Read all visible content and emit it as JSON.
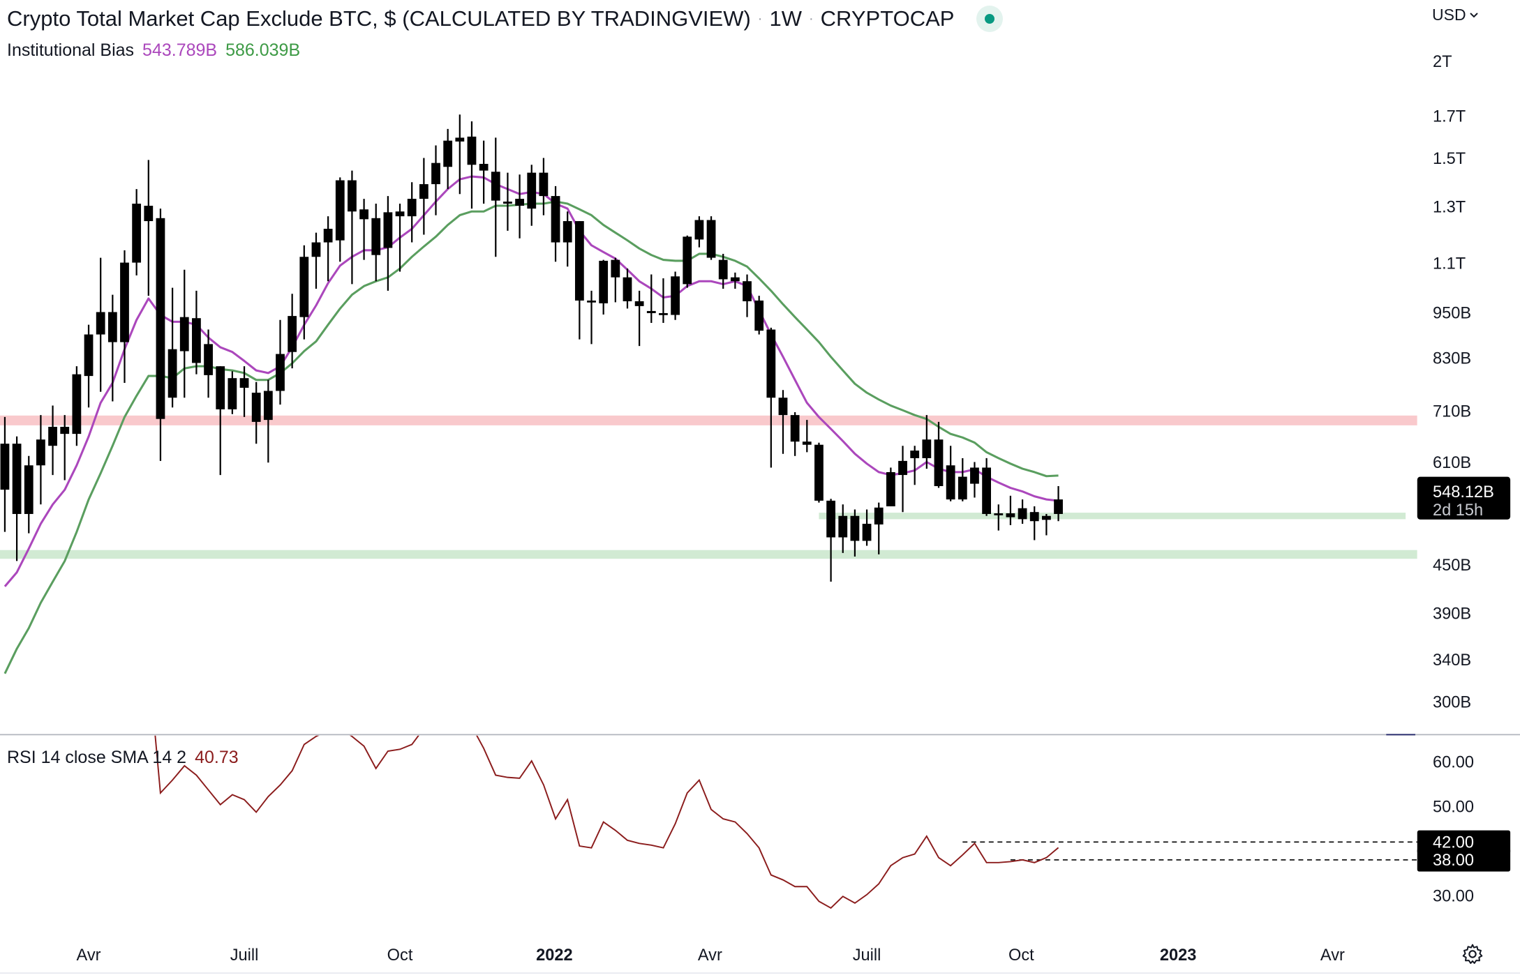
{
  "header": {
    "title": "Crypto Total Market Cap Exclude BTC, $ (CALCULATED BY TRADINGVIEW)",
    "separator": "·",
    "interval": "1W",
    "exchange": "CRYPTOCAP",
    "market_status_color": "#089981"
  },
  "indicator": {
    "name": "Institutional Bias",
    "fast_value": "543.789B",
    "slow_value": "586.039B",
    "fast_color": "#ab47bc",
    "slow_color": "#5a9e5f"
  },
  "currency": {
    "label": "USD",
    "icon": "chevron-down-icon"
  },
  "price_scale": {
    "type": "log",
    "labels": [
      {
        "text": "2T",
        "value": 2000
      },
      {
        "text": "1.7T",
        "value": 1700
      },
      {
        "text": "1.5T",
        "value": 1500
      },
      {
        "text": "1.3T",
        "value": 1300
      },
      {
        "text": "1.1T",
        "value": 1100
      },
      {
        "text": "950B",
        "value": 950
      },
      {
        "text": "830B",
        "value": 830
      },
      {
        "text": "710B",
        "value": 710
      },
      {
        "text": "610B",
        "value": 610
      },
      {
        "text": "450B",
        "value": 450
      },
      {
        "text": "390B",
        "value": 390
      },
      {
        "text": "340B",
        "value": 340
      },
      {
        "text": "300B",
        "value": 300
      }
    ],
    "current_price": {
      "text": "548.12B",
      "value": 548.12,
      "countdown": "2d 15h"
    }
  },
  "time_scale": {
    "labels": [
      {
        "text": "Avr",
        "week": 8.0,
        "bold": false
      },
      {
        "text": "Juill",
        "week": 21.0,
        "bold": false
      },
      {
        "text": "Oct",
        "week": 34.0,
        "bold": false
      },
      {
        "text": "2022",
        "week": 46.9,
        "bold": true
      },
      {
        "text": "Avr",
        "week": 59.9,
        "bold": false
      },
      {
        "text": "Juill",
        "week": 73.0,
        "bold": false
      },
      {
        "text": "Oct",
        "week": 85.9,
        "bold": false
      },
      {
        "text": "2023",
        "week": 99.0,
        "bold": true
      },
      {
        "text": "Avr",
        "week": 111.9,
        "bold": false
      }
    ]
  },
  "chart_data": {
    "type": "candlestick",
    "units": "billion USD",
    "candle_fields": [
      "high",
      "body_high",
      "body_low",
      "low"
    ],
    "candles": [
      [
        697,
        644,
        562,
        496
      ],
      [
        658,
        644,
        523,
        455
      ],
      [
        621,
        604,
        523,
        494
      ],
      [
        701,
        652,
        604,
        538
      ],
      [
        721,
        677,
        640,
        587
      ],
      [
        701,
        677,
        663,
        578
      ],
      [
        810,
        791,
        663,
        640
      ],
      [
        916,
        890,
        787,
        717
      ],
      [
        1117,
        951,
        890,
        751
      ],
      [
        1001,
        951,
        870,
        730
      ],
      [
        1142,
        1101,
        870,
        771
      ],
      [
        1369,
        1311,
        1101,
        1060
      ],
      [
        1492,
        1303,
        1245,
        998
      ],
      [
        1292,
        1256,
        693,
        612
      ],
      [
        1022,
        852,
        738,
        717
      ],
      [
        1078,
        937,
        847,
        738
      ],
      [
        1013,
        934,
        818,
        791
      ],
      [
        903,
        865,
        789,
        738
      ],
      [
        810,
        810,
        713,
        587
      ],
      [
        798,
        782,
        713,
        703
      ],
      [
        810,
        782,
        760,
        697
      ],
      [
        773,
        749,
        687,
        644
      ],
      [
        778,
        753,
        691,
        609
      ],
      [
        929,
        840,
        753,
        723
      ],
      [
        1004,
        940,
        845,
        805
      ],
      [
        1159,
        1120,
        937,
        877
      ],
      [
        1203,
        1169,
        1120,
        1019
      ],
      [
        1263,
        1217,
        1169,
        1042
      ],
      [
        1417,
        1405,
        1176,
        1104
      ],
      [
        1446,
        1405,
        1281,
        1033
      ],
      [
        1330,
        1289,
        1252,
        1110
      ],
      [
        1311,
        1256,
        1126,
        1042
      ],
      [
        1341,
        1278,
        1150,
        1013
      ],
      [
        1311,
        1281,
        1263,
        1072
      ],
      [
        1397,
        1330,
        1263,
        1169
      ],
      [
        1501,
        1389,
        1330,
        1196
      ],
      [
        1558,
        1479,
        1389,
        1267
      ],
      [
        1636,
        1580,
        1462,
        1369
      ],
      [
        1707,
        1594,
        1576,
        1349
      ],
      [
        1673,
        1599,
        1471,
        1292
      ],
      [
        1580,
        1475,
        1446,
        1311
      ],
      [
        1594,
        1441,
        1323,
        1120
      ],
      [
        1437,
        1319,
        1311,
        1210
      ],
      [
        1429,
        1330,
        1303,
        1183
      ],
      [
        1471,
        1437,
        1292,
        1228
      ],
      [
        1501,
        1437,
        1341,
        1267
      ],
      [
        1381,
        1341,
        1169,
        1104
      ],
      [
        1281,
        1245,
        1169,
        1088
      ],
      [
        1245,
        1245,
        984,
        877
      ],
      [
        1013,
        984,
        979,
        865
      ],
      [
        1110,
        1107,
        976,
        944
      ],
      [
        1117,
        1110,
        1054,
        979
      ],
      [
        1082,
        1054,
        982,
        961
      ],
      [
        1013,
        982,
        968,
        860
      ],
      [
        1063,
        954,
        948,
        921
      ],
      [
        1051,
        948,
        943,
        921
      ],
      [
        1072,
        1057,
        943,
        929
      ],
      [
        1193,
        1189,
        1033,
        1022
      ],
      [
        1263,
        1249,
        1179,
        1152
      ],
      [
        1263,
        1249,
        1117,
        1110
      ],
      [
        1130,
        1110,
        1048,
        1019
      ],
      [
        1069,
        1054,
        1042,
        1019
      ],
      [
        1063,
        1042,
        982,
        937
      ],
      [
        998,
        984,
        900,
        890
      ],
      [
        908,
        903,
        738,
        600
      ],
      [
        755,
        738,
        701,
        625
      ],
      [
        707,
        701,
        648,
        621
      ],
      [
        691,
        648,
        642,
        628
      ],
      [
        646,
        642,
        544,
        541
      ],
      [
        547,
        544,
        488,
        428
      ],
      [
        538,
        520,
        488,
        466
      ],
      [
        530,
        520,
        483,
        461
      ],
      [
        530,
        508,
        483,
        476
      ],
      [
        541,
        533,
        507,
        464
      ],
      [
        600,
        592,
        535,
        535
      ],
      [
        640,
        612,
        587,
        526
      ],
      [
        640,
        631,
        617,
        570
      ],
      [
        701,
        652,
        617,
        598
      ],
      [
        687,
        652,
        568,
        565
      ],
      [
        640,
        604,
        546,
        543
      ],
      [
        617,
        584,
        546,
        543
      ],
      [
        610,
        600,
        572,
        549
      ],
      [
        617,
        600,
        523,
        520
      ],
      [
        538,
        524,
        521,
        498
      ],
      [
        552,
        524,
        518,
        506
      ],
      [
        546,
        532,
        515,
        508
      ],
      [
        535,
        526,
        512,
        484
      ],
      [
        523,
        520,
        514,
        491
      ],
      [
        568,
        546,
        523,
        512
      ]
    ],
    "ma_fast": [
      422,
      440,
      472,
      508,
      538,
      562,
      604,
      658,
      727,
      771,
      852,
      929,
      990,
      943,
      924,
      924,
      916,
      882,
      857,
      845,
      823,
      800,
      794,
      810,
      857,
      916,
      970,
      1036,
      1091,
      1120,
      1142,
      1142,
      1152,
      1186,
      1217,
      1267,
      1319,
      1369,
      1409,
      1421,
      1417,
      1389,
      1369,
      1349,
      1357,
      1349,
      1311,
      1292,
      1210,
      1159,
      1136,
      1114,
      1078,
      1042,
      1019,
      993,
      998,
      1027,
      1042,
      1042,
      1033,
      1042,
      1027,
      956,
      890,
      833,
      778,
      727,
      697,
      673,
      649,
      625,
      607,
      592,
      587,
      590,
      595,
      610,
      598,
      592,
      592,
      597,
      584,
      574,
      565,
      559,
      551,
      546,
      543.789
    ],
    "ma_slow": [
      326,
      351,
      373,
      402,
      428,
      455,
      496,
      546,
      590,
      640,
      697,
      742,
      787,
      787,
      782,
      805,
      810,
      810,
      803,
      800,
      794,
      778,
      778,
      794,
      817,
      847,
      872,
      916,
      961,
      1001,
      1027,
      1042,
      1054,
      1082,
      1120,
      1155,
      1189,
      1231,
      1267,
      1281,
      1281,
      1303,
      1303,
      1307,
      1311,
      1311,
      1319,
      1311,
      1289,
      1267,
      1231,
      1203,
      1176,
      1148,
      1126,
      1110,
      1107,
      1107,
      1130,
      1130,
      1120,
      1107,
      1088,
      1051,
      1013,
      973,
      937,
      903,
      870,
      833,
      800,
      769,
      749,
      734,
      721,
      711,
      701,
      693,
      677,
      663,
      656,
      646,
      628,
      617,
      607,
      598,
      592,
      585,
      586.039
    ],
    "zones": [
      {
        "kind": "resistance",
        "low": 680,
        "high": 700,
        "color": "#f9c9cc",
        "start_week": 0
      },
      {
        "kind": "support",
        "low": 458,
        "high": 470,
        "color": "#d1ead3",
        "start_week": 0
      },
      {
        "kind": "support",
        "low": 515,
        "high": 525,
        "color": "#d1ead3",
        "start_week": 69
      }
    ]
  },
  "rsi": {
    "label": "RSI 14 close SMA 14 2",
    "value": "40.73",
    "color": "#8b1c1c",
    "axis_labels": [
      {
        "text": "60.00",
        "value": 60
      },
      {
        "text": "50.00",
        "value": 50
      },
      {
        "text": "30.00",
        "value": 30
      }
    ],
    "levels": [
      {
        "text": "42.00",
        "value": 42,
        "start_week": 81
      },
      {
        "text": "38.00",
        "value": 38,
        "start_week": 85
      }
    ],
    "start_week": 13,
    "values": [
      68,
      53.0,
      55.9,
      59.1,
      57.0,
      53.7,
      50.4,
      52.6,
      51.5,
      48.7,
      52.2,
      54.8,
      58.0,
      63.9,
      65.7,
      67.0,
      67.5,
      65.7,
      63.5,
      58.5,
      62.4,
      62.8,
      63.9,
      67.5,
      70,
      72,
      73,
      68,
      63.0,
      57.0,
      56.5,
      56.3,
      60.2,
      54.8,
      47.2,
      51.5,
      41.1,
      40.7,
      46.5,
      44.6,
      42.4,
      41.7,
      41.3,
      40.7,
      46.1,
      53.0,
      55.9,
      49.3,
      47.2,
      46.5,
      43.9,
      40.7,
      34.6,
      33.5,
      32.0,
      32.0,
      28.7,
      27.2,
      29.8,
      28.3,
      30.2,
      32.6,
      36.7,
      38.5,
      39.3,
      43.3,
      38.5,
      36.7,
      39.1,
      41.7,
      37.4,
      37.4,
      37.6,
      38.0,
      37.4,
      38.5,
      40.73
    ]
  }
}
